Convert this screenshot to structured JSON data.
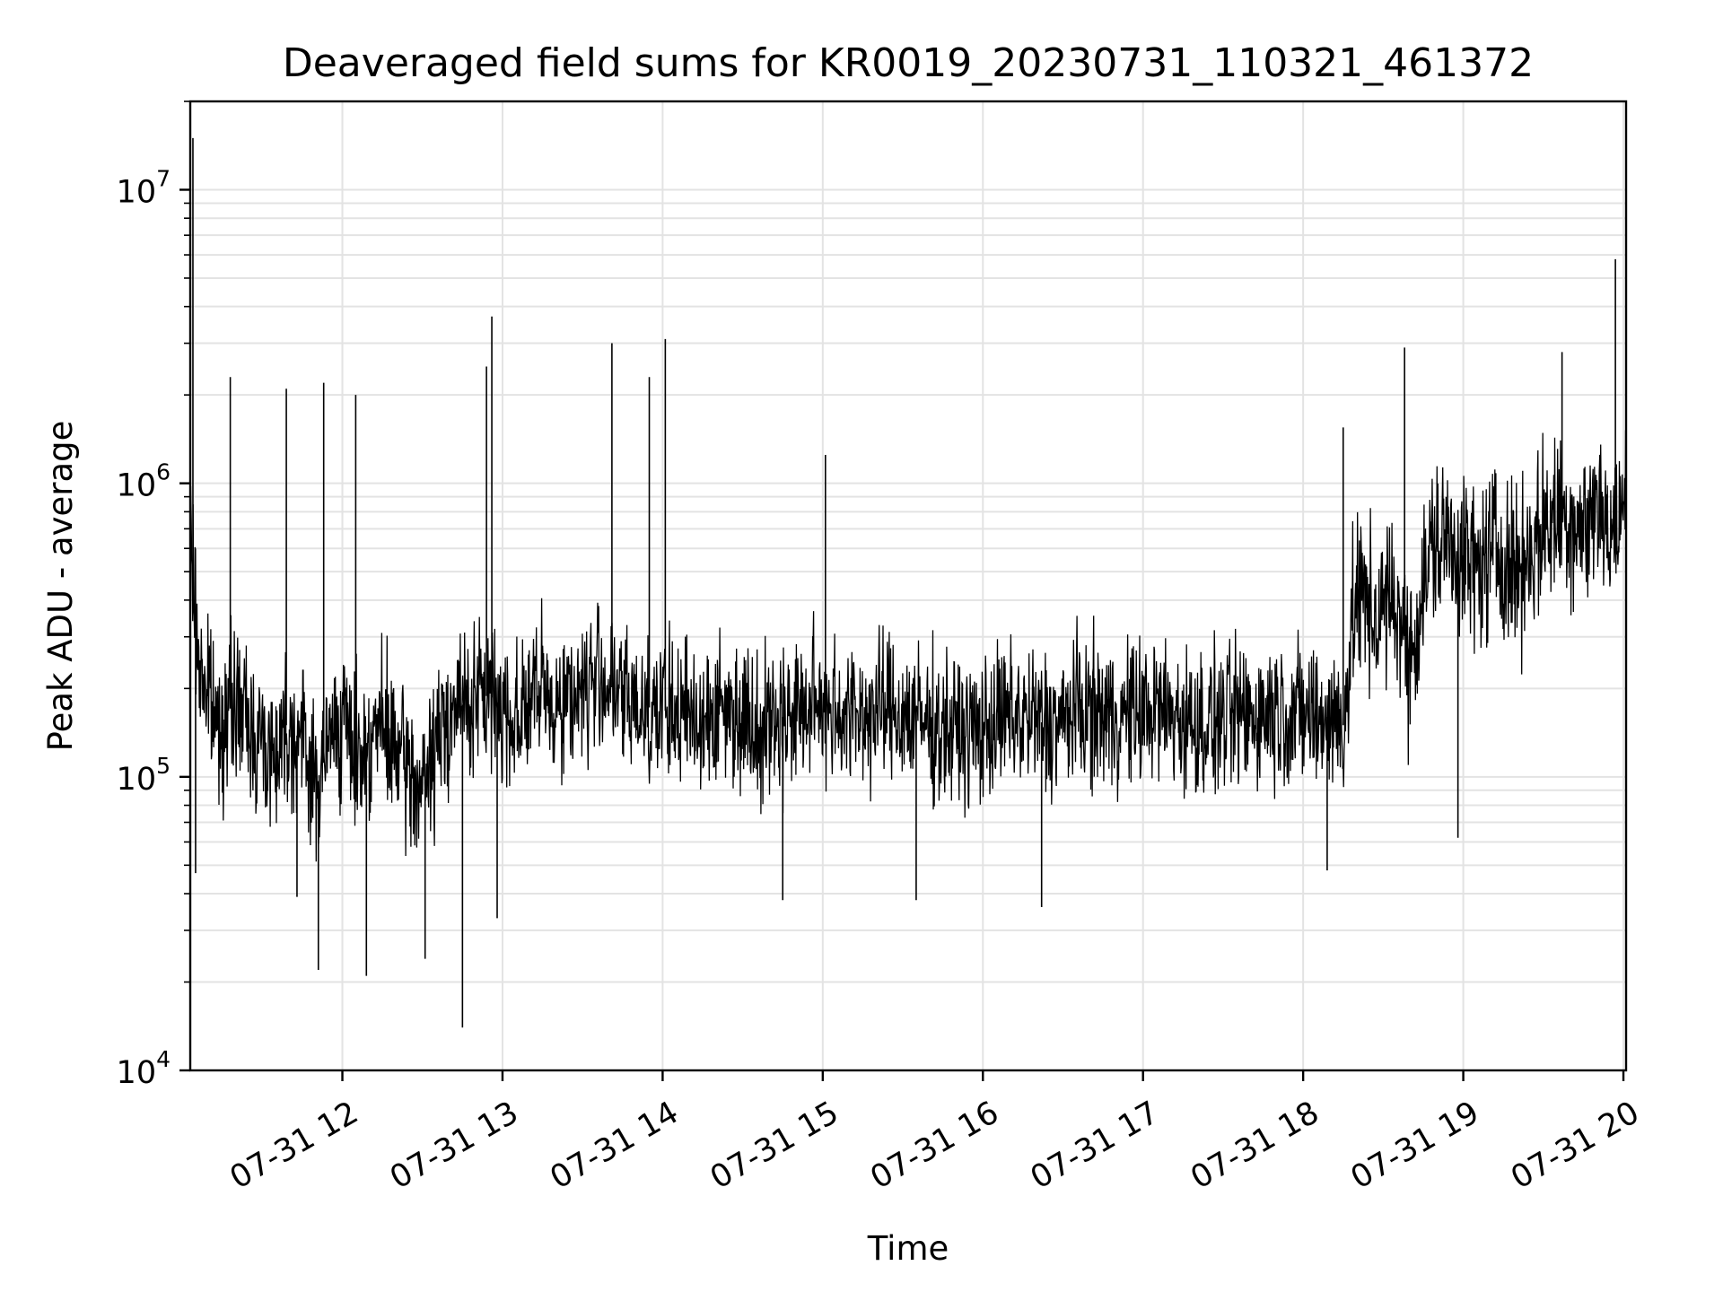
{
  "chart_data": {
    "type": "line",
    "title": "Deaveraged field sums for KR0019_20230731_110321_461372",
    "xlabel": "Time",
    "ylabel": "Peak ADU - average",
    "x_scale": "time",
    "y_scale": "log",
    "xlim": [
      "2023-07-31 11:03",
      "2023-07-31 20:01"
    ],
    "ylim": [
      10000,
      20000000
    ],
    "grid": true,
    "x_tick_labels": [
      "07-31 12",
      "07-31 13",
      "07-31 14",
      "07-31 15",
      "07-31 16",
      "07-31 17",
      "07-31 18",
      "07-31 19",
      "07-31 20"
    ],
    "y_tick_labels": [
      {
        "base": "10",
        "exp": "4"
      },
      {
        "base": "10",
        "exp": "5"
      },
      {
        "base": "10",
        "exp": "6"
      },
      {
        "base": "10",
        "exp": "7"
      }
    ],
    "series": [
      {
        "color": "#000000",
        "x": [
          "2023-07-31 11:03",
          "2023-07-31 11:06",
          "2023-07-31 11:13",
          "2023-07-31 11:20",
          "2023-07-31 11:27",
          "2023-07-31 11:34",
          "2023-07-31 11:39",
          "2023-07-31 11:46",
          "2023-07-31 11:50",
          "2023-07-31 11:58",
          "2023-07-31 12:06",
          "2023-07-31 12:14",
          "2023-07-31 12:23",
          "2023-07-31 12:30",
          "2023-07-31 12:40",
          "2023-07-31 12:48",
          "2023-07-31 12:55",
          "2023-07-31 13:04",
          "2023-07-31 13:12",
          "2023-07-31 13:22",
          "2023-07-31 13:30",
          "2023-07-31 13:38",
          "2023-07-31 13:45",
          "2023-07-31 13:58",
          "2023-07-31 14:12",
          "2023-07-31 14:25",
          "2023-07-31 14:38",
          "2023-07-31 14:45",
          "2023-07-31 14:55",
          "2023-07-31 15:01",
          "2023-07-31 15:10",
          "2023-07-31 15:25",
          "2023-07-31 15:40",
          "2023-07-31 15:55",
          "2023-07-31 16:10",
          "2023-07-31 16:28",
          "2023-07-31 16:35",
          "2023-07-31 16:50",
          "2023-07-31 17:05",
          "2023-07-31 17:20",
          "2023-07-31 17:35",
          "2023-07-31 17:50",
          "2023-07-31 18:04",
          "2023-07-31 18:10",
          "2023-07-31 18:15",
          "2023-07-31 18:20",
          "2023-07-31 18:27",
          "2023-07-31 18:35",
          "2023-07-31 18:40",
          "2023-07-31 18:48",
          "2023-07-31 18:55",
          "2023-07-31 19:05",
          "2023-07-31 19:12",
          "2023-07-31 19:20",
          "2023-07-31 19:30",
          "2023-07-31 19:38",
          "2023-07-31 19:45",
          "2023-07-31 19:52",
          "2023-07-31 19:55",
          "2023-07-31 20:00",
          "2023-07-31 20:01"
        ],
        "y": [
          700000,
          250000,
          150000,
          180000,
          140000,
          120000,
          150000,
          130000,
          90000,
          160000,
          120000,
          150000,
          110000,
          90000,
          170000,
          180000,
          190000,
          160000,
          190000,
          180000,
          200000,
          220000,
          180000,
          170000,
          160000,
          170000,
          150000,
          160000,
          170000,
          180000,
          160000,
          170000,
          150000,
          140000,
          160000,
          150000,
          170000,
          160000,
          170000,
          150000,
          160000,
          170000,
          160000,
          160000,
          150000,
          420000,
          350000,
          400000,
          250000,
          600000,
          650000,
          500000,
          600000,
          500000,
          700000,
          800000,
          700000,
          900000,
          600000,
          800000,
          900000
        ]
      }
    ],
    "spikes": [
      {
        "x": "2023-07-31 11:04",
        "y": 15000000
      },
      {
        "x": "2023-07-31 11:05",
        "y": 47000
      },
      {
        "x": "2023-07-31 11:18",
        "y": 2300000
      },
      {
        "x": "2023-07-31 11:39",
        "y": 2100000
      },
      {
        "x": "2023-07-31 11:43",
        "y": 39000
      },
      {
        "x": "2023-07-31 11:51",
        "y": 22000
      },
      {
        "x": "2023-07-31 11:53",
        "y": 2200000
      },
      {
        "x": "2023-07-31 12:05",
        "y": 2000000
      },
      {
        "x": "2023-07-31 12:09",
        "y": 21000
      },
      {
        "x": "2023-07-31 12:31",
        "y": 24000
      },
      {
        "x": "2023-07-31 12:45",
        "y": 14000
      },
      {
        "x": "2023-07-31 12:54",
        "y": 2500000
      },
      {
        "x": "2023-07-31 12:56",
        "y": 3700000
      },
      {
        "x": "2023-07-31 12:58",
        "y": 33000
      },
      {
        "x": "2023-07-31 13:55",
        "y": 2300000
      },
      {
        "x": "2023-07-31 13:41",
        "y": 3000000
      },
      {
        "x": "2023-07-31 14:01",
        "y": 3100000
      },
      {
        "x": "2023-07-31 14:45",
        "y": 38000
      },
      {
        "x": "2023-07-31 15:01",
        "y": 1250000
      },
      {
        "x": "2023-07-31 15:35",
        "y": 38000
      },
      {
        "x": "2023-07-31 16:22",
        "y": 36000
      },
      {
        "x": "2023-07-31 18:09",
        "y": 48000
      },
      {
        "x": "2023-07-31 18:15",
        "y": 1550000
      },
      {
        "x": "2023-07-31 18:38",
        "y": 2900000
      },
      {
        "x": "2023-07-31 18:58",
        "y": 62000
      },
      {
        "x": "2023-07-31 19:37",
        "y": 2800000
      },
      {
        "x": "2023-07-31 19:57",
        "y": 5800000
      }
    ]
  }
}
